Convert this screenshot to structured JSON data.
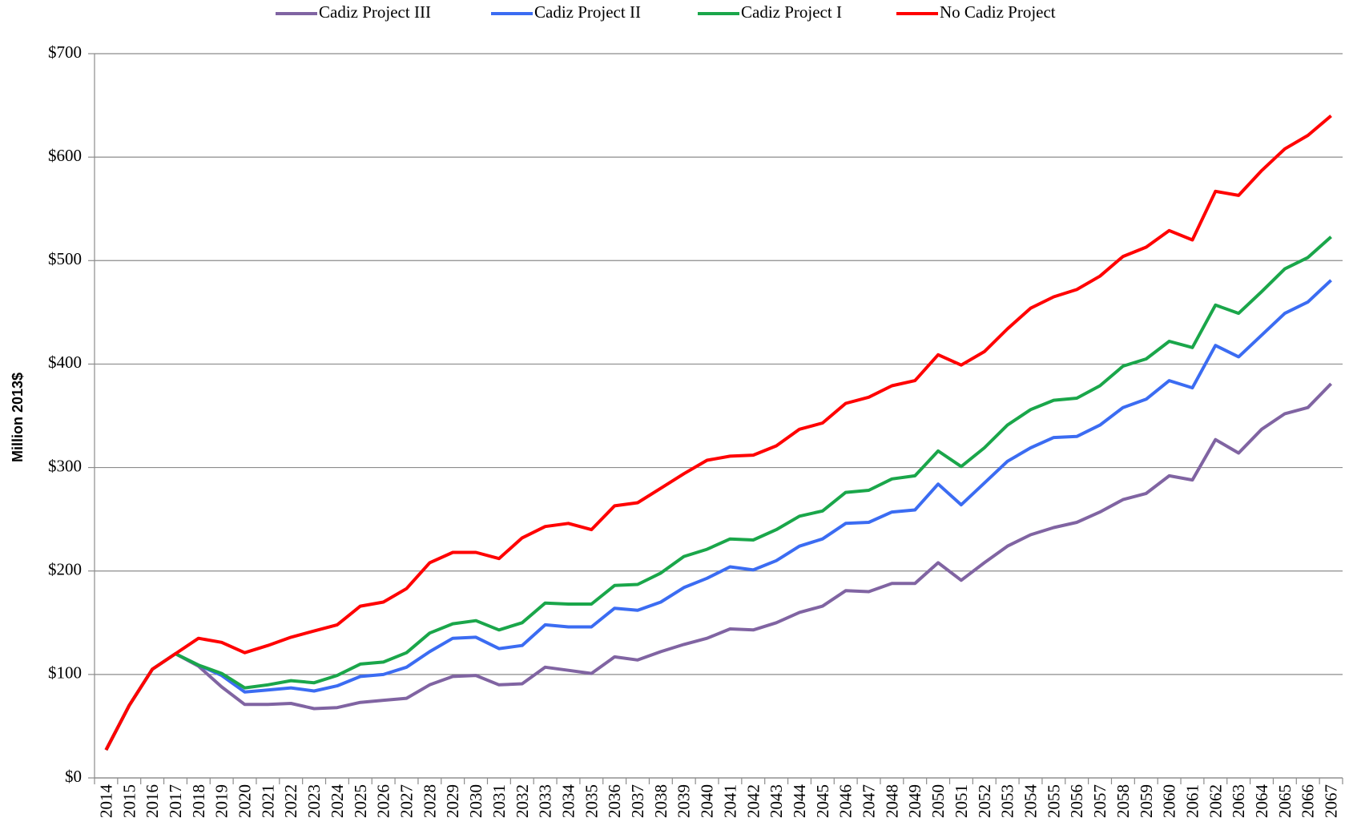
{
  "chart_data": {
    "type": "line",
    "y_label": "Million 2013$",
    "categories": [
      "2014",
      "2015",
      "2016",
      "2017",
      "2018",
      "2019",
      "2020",
      "2021",
      "2022",
      "2023",
      "2024",
      "2025",
      "2026",
      "2027",
      "2028",
      "2029",
      "2030",
      "2031",
      "2032",
      "2033",
      "2034",
      "2035",
      "2036",
      "2037",
      "2038",
      "2039",
      "2040",
      "2041",
      "2042",
      "2043",
      "2044",
      "2045",
      "2046",
      "2047",
      "2048",
      "2049",
      "2050",
      "2051",
      "2052",
      "2053",
      "2054",
      "2055",
      "2056",
      "2057",
      "2058",
      "2059",
      "2060",
      "2061",
      "2062",
      "2063",
      "2064",
      "2065",
      "2066",
      "2067"
    ],
    "series": [
      {
        "name": "Cadiz Project III",
        "color": "#8064a2",
        "values": [
          27,
          70,
          105,
          120,
          108,
          88,
          71,
          71,
          72,
          67,
          68,
          73,
          75,
          77,
          90,
          98,
          99,
          90,
          91,
          107,
          104,
          101,
          117,
          114,
          122,
          129,
          135,
          144,
          143,
          150,
          160,
          166,
          181,
          180,
          188,
          188,
          208,
          191,
          208,
          224,
          235,
          242,
          247,
          257,
          269,
          275,
          292,
          288,
          327,
          314,
          337,
          352,
          358,
          381
        ]
      },
      {
        "name": "Cadiz Project II",
        "color": "#3b6cf2",
        "values": [
          27,
          70,
          105,
          120,
          109,
          99,
          83,
          85,
          87,
          84,
          89,
          98,
          100,
          107,
          122,
          135,
          136,
          125,
          128,
          148,
          146,
          146,
          164,
          162,
          170,
          184,
          193,
          204,
          201,
          210,
          224,
          231,
          246,
          247,
          257,
          259,
          284,
          264,
          285,
          306,
          319,
          329,
          330,
          341,
          358,
          366,
          384,
          377,
          418,
          407,
          428,
          449,
          460,
          481
        ]
      },
      {
        "name": "Cadiz Project I",
        "color": "#1aa64a",
        "values": [
          27,
          70,
          105,
          120,
          109,
          101,
          87,
          90,
          94,
          92,
          99,
          110,
          112,
          121,
          140,
          149,
          152,
          143,
          150,
          169,
          168,
          168,
          186,
          187,
          198,
          214,
          221,
          231,
          230,
          240,
          253,
          258,
          276,
          278,
          289,
          292,
          316,
          301,
          319,
          341,
          356,
          365,
          367,
          379,
          398,
          405,
          422,
          416,
          457,
          449,
          470,
          492,
          503,
          523
        ]
      },
      {
        "name": "No Cadiz Project",
        "color": "#ff0000",
        "values": [
          27,
          70,
          105,
          120,
          135,
          131,
          121,
          128,
          136,
          142,
          148,
          166,
          170,
          183,
          208,
          218,
          218,
          212,
          232,
          243,
          246,
          240,
          263,
          266,
          280,
          294,
          307,
          311,
          312,
          321,
          337,
          343,
          362,
          368,
          379,
          384,
          409,
          399,
          412,
          434,
          454,
          465,
          472,
          485,
          504,
          513,
          529,
          520,
          567,
          563,
          587,
          608,
          621,
          640
        ]
      }
    ],
    "ylim": [
      0,
      700
    ],
    "yticks": [
      {
        "value": 0,
        "label": "$0"
      },
      {
        "value": 100,
        "label": "$100"
      },
      {
        "value": 200,
        "label": "$200"
      },
      {
        "value": 300,
        "label": "$300"
      },
      {
        "value": 400,
        "label": "$400"
      },
      {
        "value": 500,
        "label": "$500"
      },
      {
        "value": 600,
        "label": "$600"
      },
      {
        "value": 700,
        "label": "$700"
      }
    ],
    "grid": true,
    "legend": "top"
  }
}
